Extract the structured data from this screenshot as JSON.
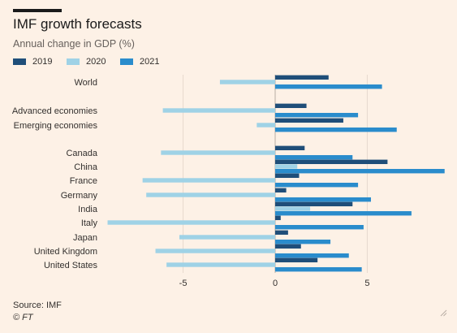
{
  "header": {
    "title": "IMF growth forecasts",
    "subtitle": "Annual change in GDP (%)"
  },
  "footer": {
    "source": "Source: IMF",
    "copyright": "© FT"
  },
  "colors": {
    "background": "#fdf1e6",
    "gridline": "#e6d9ce",
    "zeroline": "#b8ada4",
    "y2019": "#1f4e79",
    "y2020": "#9fd2e6",
    "y2021": "#2a8ccc"
  },
  "chart_data": {
    "type": "bar",
    "orientation": "horizontal",
    "categories": [
      "World",
      "Advanced economies",
      "Emerging economies",
      "Canada",
      "China",
      "France",
      "Germany",
      "India",
      "Italy",
      "Japan",
      "United Kingdom",
      "United States"
    ],
    "series": [
      {
        "name": "2019",
        "values": [
          2.9,
          1.7,
          3.7,
          1.6,
          6.1,
          1.3,
          0.6,
          4.2,
          0.3,
          0.7,
          1.4,
          2.3
        ]
      },
      {
        "name": "2020",
        "values": [
          -3.0,
          -6.1,
          -1.0,
          -6.2,
          1.2,
          -7.2,
          -7.0,
          1.9,
          -9.1,
          -5.2,
          -6.5,
          -5.9
        ]
      },
      {
        "name": "2021",
        "values": [
          5.8,
          4.5,
          6.6,
          4.2,
          9.2,
          4.5,
          5.2,
          7.4,
          4.8,
          3.0,
          4.0,
          4.7
        ]
      }
    ],
    "xlim": [
      -9.3,
      9.3
    ],
    "xticks": [
      -5,
      0,
      5
    ],
    "xtick_labels": [
      "-5",
      "0",
      "5"
    ],
    "legend_position": "top-left",
    "grid": true
  }
}
